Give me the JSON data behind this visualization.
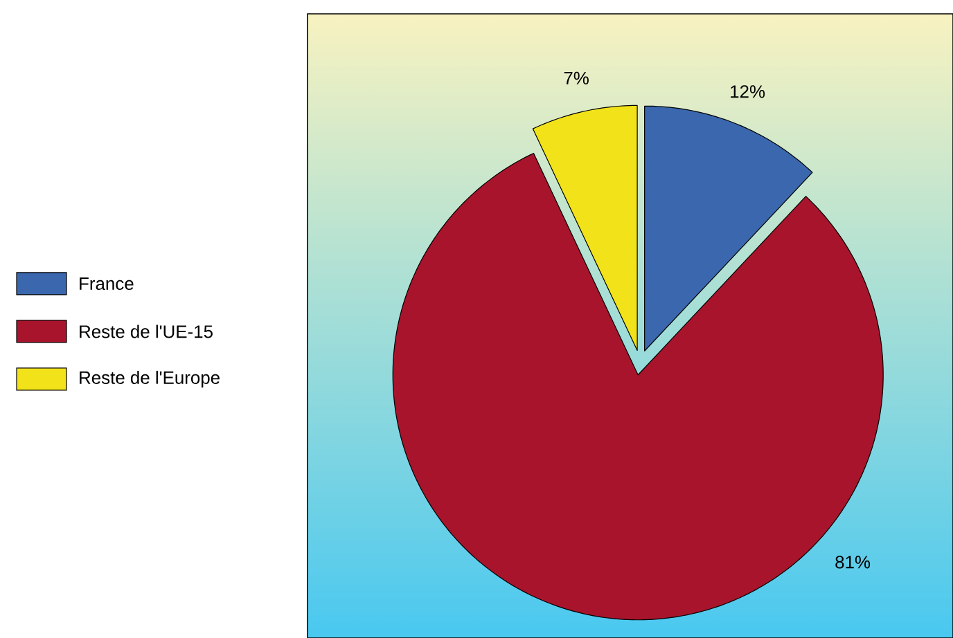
{
  "chart_data": {
    "type": "pie",
    "categories": [
      "France",
      "Reste de l'UE-15",
      "Reste de l'Europe"
    ],
    "values": [
      12,
      81,
      7
    ],
    "colors": [
      "#3a67ad",
      "#a8142c",
      "#f2e21a"
    ],
    "value_labels": [
      "12%",
      "81%",
      "7%"
    ],
    "legend": "left"
  }
}
